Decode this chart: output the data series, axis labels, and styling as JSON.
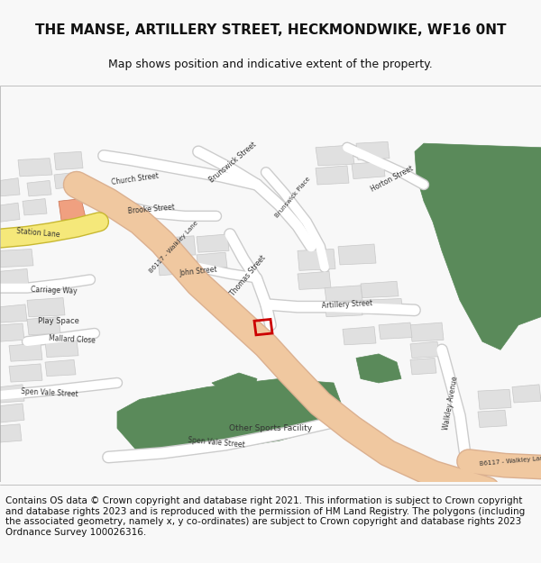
{
  "title": "THE MANSE, ARTILLERY STREET, HECKMONDWIKE, WF16 0NT",
  "subtitle": "Map shows position and indicative extent of the property.",
  "footer": "Contains OS data © Crown copyright and database right 2021. This information is subject to Crown copyright and database rights 2023 and is reproduced with the permission of HM Land Registry. The polygons (including the associated geometry, namely x, y co-ordinates) are subject to Crown copyright and database rights 2023 Ordnance Survey 100026316.",
  "bg_color": "#f8f8f8",
  "map_bg": "#ffffff",
  "road_main_color": "#f0c8a0",
  "road_minor_color": "#e8e8e8",
  "road_outline_color": "#d0d0d0",
  "building_color": "#e0e0e0",
  "building_edge_color": "#c0c0c0",
  "green_color": "#5a8a5a",
  "green2_color": "#6a9a6a",
  "highlight_color": "#cc0000",
  "yellow_road_color": "#f5e87a",
  "text_color": "#333333",
  "title_fontsize": 11,
  "subtitle_fontsize": 9,
  "footer_fontsize": 7.5
}
